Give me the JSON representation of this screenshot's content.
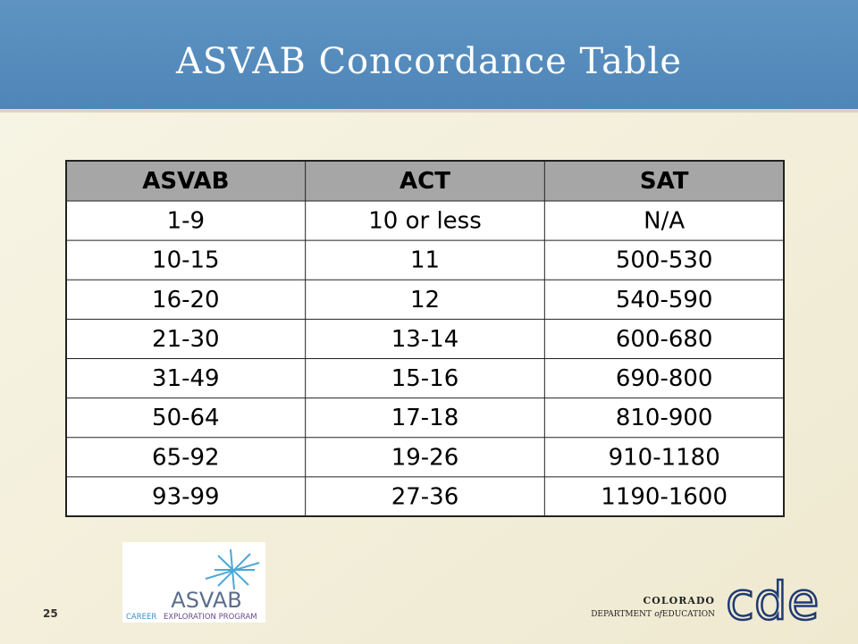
{
  "header": {
    "title": "ASVAB Concordance Table"
  },
  "table": {
    "columns": [
      "ASVAB",
      "ACT",
      "SAT"
    ],
    "rows": [
      [
        "1-9",
        "10 or less",
        "N/A"
      ],
      [
        "10-15",
        "11",
        "500-530"
      ],
      [
        "16-20",
        "12",
        "540-590"
      ],
      [
        "21-30",
        "13-14",
        "600-680"
      ],
      [
        "31-49",
        "15-16",
        "690-800"
      ],
      [
        "50-64",
        "17-18",
        "810-900"
      ],
      [
        "65-92",
        "19-26",
        "910-1180"
      ],
      [
        "93-99",
        "27-36",
        "1190-1600"
      ]
    ]
  },
  "footer": {
    "page_number": "25",
    "asvab_logo": {
      "name": "ASVAB",
      "career": "CAREER",
      "program": "EXPLORATION PROGRAM"
    },
    "cde_logo": {
      "state": "COLORADO",
      "department": "DEPARTMENT",
      "of": "of",
      "education": "EDUCATION",
      "mark": "cde"
    }
  }
}
